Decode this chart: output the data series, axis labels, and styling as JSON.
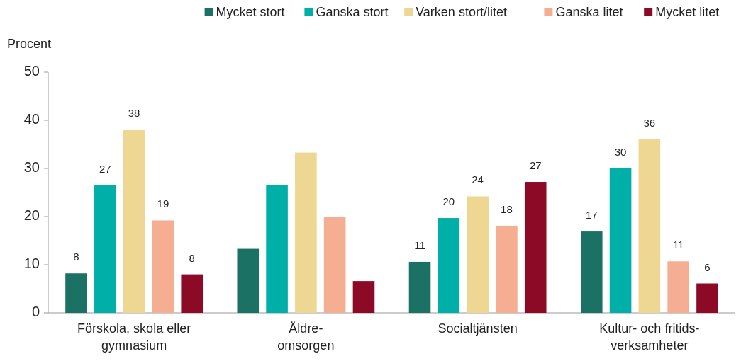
{
  "chart_data": {
    "type": "bar",
    "ylabel": "Procent",
    "categories": [
      "Förskola, skola eller\ngymnasium",
      "Äldre-\nomsorgen",
      "Socialtjänsten",
      "Kultur- och fritids-\nverksamheter"
    ],
    "series": [
      {
        "name": "Mycket stort",
        "color": "#1b7163",
        "values": [
          8.2,
          13.3,
          10.6,
          16.9
        ],
        "value_labels": [
          "8",
          null,
          "11",
          "17"
        ]
      },
      {
        "name": "Ganska stort",
        "color": "#00b0a8",
        "values": [
          26.5,
          26.6,
          19.7,
          30.0
        ],
        "value_labels": [
          "27",
          null,
          "20",
          "30"
        ]
      },
      {
        "name": "Varken stort/litet",
        "color": "#edd792",
        "values": [
          38.1,
          33.3,
          24.2,
          36.1
        ],
        "value_labels": [
          "38",
          null,
          "24",
          "36"
        ]
      },
      {
        "name": "Ganska litet",
        "color": "#f6ae92",
        "values": [
          19.2,
          20.0,
          18.1,
          10.7
        ],
        "value_labels": [
          "19",
          null,
          "18",
          "11"
        ]
      },
      {
        "name": "Mycket litet",
        "color": "#8c0a26",
        "values": [
          8.0,
          6.6,
          27.2,
          6.1
        ],
        "value_labels": [
          "8",
          null,
          "27",
          "6"
        ]
      }
    ],
    "ylim": [
      0,
      50
    ],
    "yticks": [
      0,
      10,
      20,
      30,
      40,
      50
    ],
    "grid": false,
    "legend": "top"
  }
}
